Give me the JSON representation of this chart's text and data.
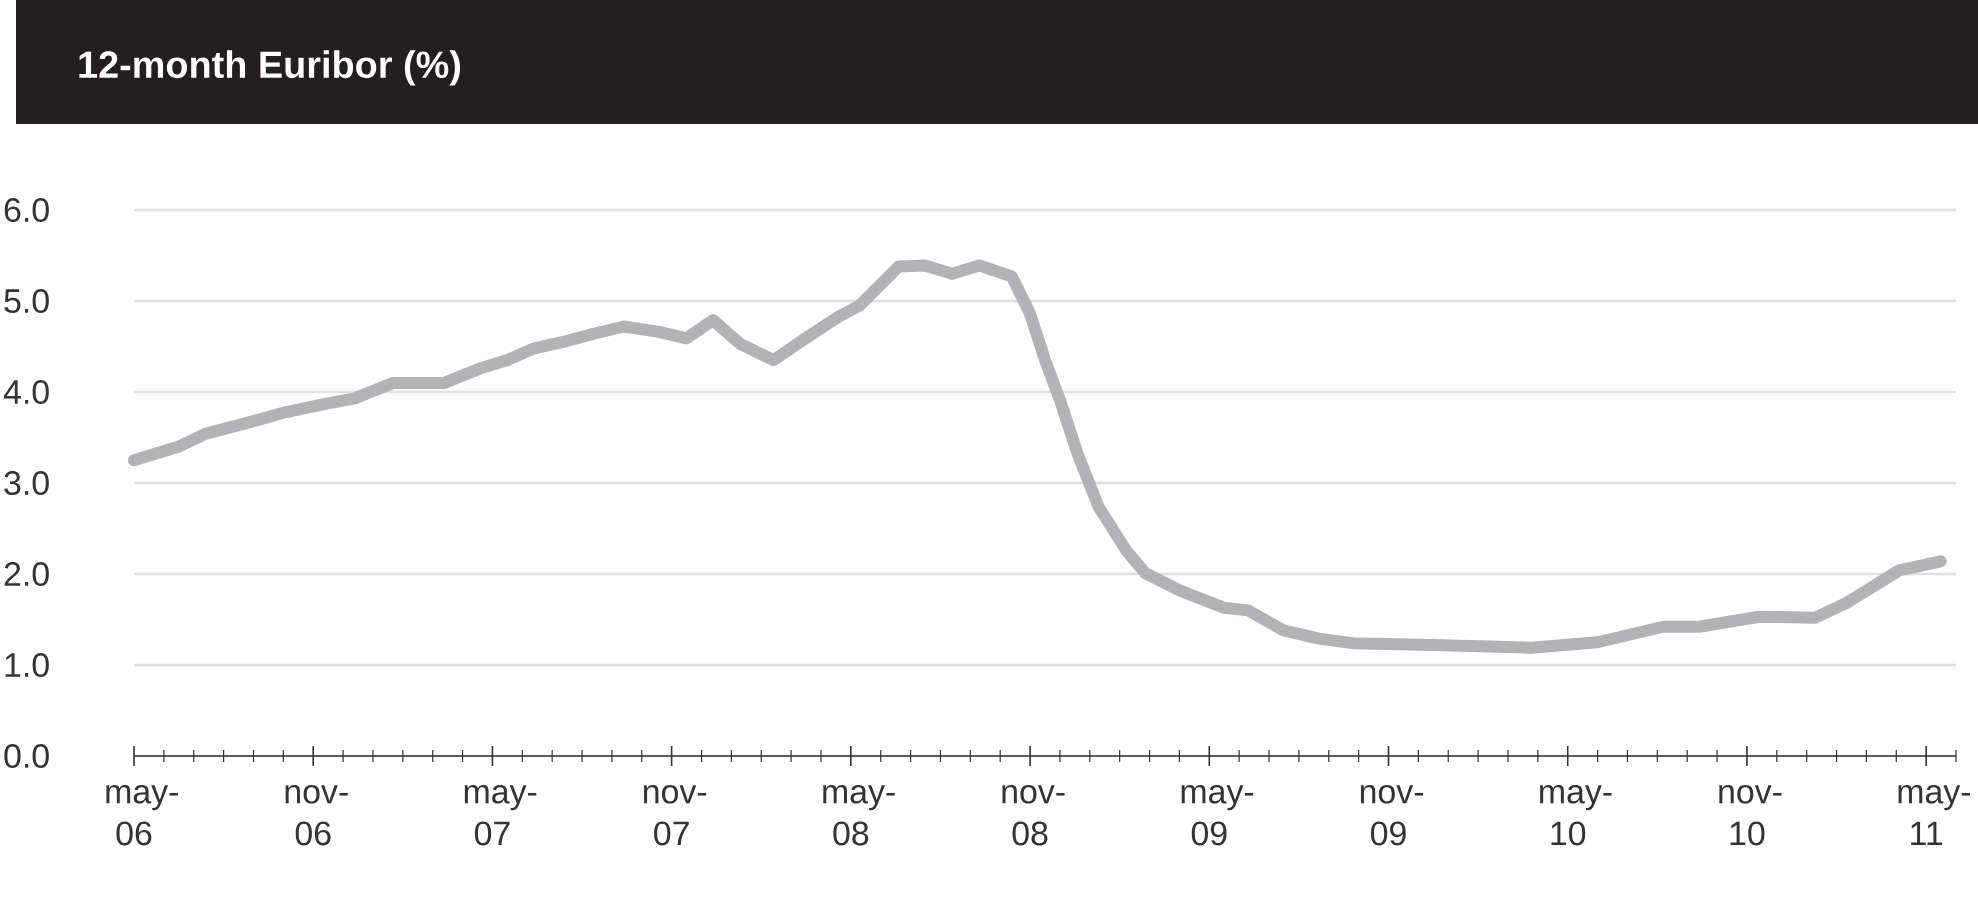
{
  "chart_data": {
    "type": "line",
    "title": "12-month Euribor (%)",
    "x": [
      "2006-05-01",
      "2006-06-16",
      "2006-07-13",
      "2006-09-01",
      "2006-10-04",
      "2006-11-13",
      "2006-12-13",
      "2007-01-22",
      "2007-03-13",
      "2007-04-19",
      "2007-05-16",
      "2007-06-13",
      "2007-07-16",
      "2007-08-13",
      "2007-09-13",
      "2007-10-19",
      "2007-11-16",
      "2007-12-13",
      "2008-01-10",
      "2008-02-13",
      "2008-03-16",
      "2008-04-19",
      "2008-05-10",
      "2008-06-19",
      "2008-07-16",
      "2008-08-13",
      "2008-09-10",
      "2008-10-13",
      "2008-11-01",
      "2008-11-16",
      "2008-12-01",
      "2008-12-19",
      "2009-01-10",
      "2009-02-07",
      "2009-02-25",
      "2009-04-01",
      "2009-05-16",
      "2009-06-10",
      "2009-07-16",
      "2009-08-22",
      "2009-09-25",
      "2009-12-16",
      "2010-03-25",
      "2010-06-01",
      "2010-08-07",
      "2010-09-13",
      "2010-11-13",
      "2011-01-10",
      "2011-02-10",
      "2011-04-04",
      "2011-05-16"
    ],
    "series": [
      {
        "color": "#b3b3b6",
        "values": [
          3.25,
          3.4,
          3.54,
          3.68,
          3.78,
          3.87,
          3.93,
          4.1,
          4.1,
          4.26,
          4.35,
          4.48,
          4.56,
          4.64,
          4.72,
          4.66,
          4.59,
          4.79,
          4.53,
          4.35,
          4.59,
          4.83,
          4.95,
          5.38,
          5.39,
          5.3,
          5.39,
          5.27,
          4.86,
          4.35,
          3.91,
          3.33,
          2.74,
          2.26,
          2.01,
          1.82,
          1.63,
          1.6,
          1.38,
          1.29,
          1.24,
          1.22,
          1.19,
          1.25,
          1.42,
          1.42,
          1.53,
          1.52,
          1.68,
          2.04,
          2.14
        ]
      }
    ],
    "xlim": [
      "2006-05",
      "2011-06"
    ],
    "xticks": [
      {
        "value": "2006-05",
        "label": "may-06"
      },
      {
        "value": "2006-06",
        "label": null
      },
      {
        "value": "2006-07",
        "label": null
      },
      {
        "value": "2006-08",
        "label": null
      },
      {
        "value": "2006-09",
        "label": null
      },
      {
        "value": "2006-10",
        "label": null
      },
      {
        "value": "2006-11",
        "label": "nov-06"
      },
      {
        "value": "2006-12",
        "label": null
      },
      {
        "value": "2007-01",
        "label": null
      },
      {
        "value": "2007-02",
        "label": null
      },
      {
        "value": "2007-03",
        "label": null
      },
      {
        "value": "2007-04",
        "label": null
      },
      {
        "value": "2007-05",
        "label": "may-07"
      },
      {
        "value": "2007-06",
        "label": null
      },
      {
        "value": "2007-07",
        "label": null
      },
      {
        "value": "2007-08",
        "label": null
      },
      {
        "value": "2007-09",
        "label": null
      },
      {
        "value": "2007-10",
        "label": null
      },
      {
        "value": "2007-11",
        "label": "nov-07"
      },
      {
        "value": "2007-12",
        "label": null
      },
      {
        "value": "2008-01",
        "label": null
      },
      {
        "value": "2008-02",
        "label": null
      },
      {
        "value": "2008-03",
        "label": null
      },
      {
        "value": "2008-04",
        "label": null
      },
      {
        "value": "2008-05",
        "label": "may-08"
      },
      {
        "value": "2008-06",
        "label": null
      },
      {
        "value": "2008-07",
        "label": null
      },
      {
        "value": "2008-08",
        "label": null
      },
      {
        "value": "2008-09",
        "label": null
      },
      {
        "value": "2008-10",
        "label": null
      },
      {
        "value": "2008-11",
        "label": "nov-08"
      },
      {
        "value": "2008-12",
        "label": null
      },
      {
        "value": "2009-01",
        "label": null
      },
      {
        "value": "2009-02",
        "label": null
      },
      {
        "value": "2009-03",
        "label": null
      },
      {
        "value": "2009-04",
        "label": null
      },
      {
        "value": "2009-05",
        "label": "may-09"
      },
      {
        "value": "2009-06",
        "label": null
      },
      {
        "value": "2009-07",
        "label": null
      },
      {
        "value": "2009-08",
        "label": null
      },
      {
        "value": "2009-09",
        "label": null
      },
      {
        "value": "2009-10",
        "label": null
      },
      {
        "value": "2009-11",
        "label": "nov-09"
      },
      {
        "value": "2009-12",
        "label": null
      },
      {
        "value": "2010-01",
        "label": null
      },
      {
        "value": "2010-02",
        "label": null
      },
      {
        "value": "2010-03",
        "label": null
      },
      {
        "value": "2010-04",
        "label": null
      },
      {
        "value": "2010-05",
        "label": "may-10"
      },
      {
        "value": "2010-06",
        "label": null
      },
      {
        "value": "2010-07",
        "label": null
      },
      {
        "value": "2010-08",
        "label": null
      },
      {
        "value": "2010-09",
        "label": null
      },
      {
        "value": "2010-10",
        "label": null
      },
      {
        "value": "2010-11",
        "label": "nov-10"
      },
      {
        "value": "2010-12",
        "label": null
      },
      {
        "value": "2011-01",
        "label": null
      },
      {
        "value": "2011-02",
        "label": null
      },
      {
        "value": "2011-03",
        "label": null
      },
      {
        "value": "2011-04",
        "label": null
      },
      {
        "value": "2011-05",
        "label": "may-11"
      },
      {
        "value": "2011-06",
        "label": null
      }
    ],
    "ylim": [
      0,
      6
    ],
    "yticks": [
      {
        "value": 0,
        "label": "0.0"
      },
      {
        "value": 1,
        "label": "1.0"
      },
      {
        "value": 2,
        "label": "2.0"
      },
      {
        "value": 3,
        "label": "3.0"
      },
      {
        "value": 4,
        "label": "4.0"
      },
      {
        "value": 5,
        "label": "5.0"
      },
      {
        "value": 6,
        "label": "6.0"
      }
    ],
    "grid": "y"
  }
}
